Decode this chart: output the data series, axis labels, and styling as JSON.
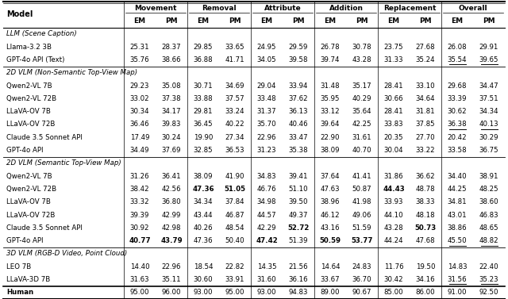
{
  "sections": [
    {
      "section_label": "LLM (Scene Caption)",
      "rows": [
        {
          "model": "Llama-3.2 3B",
          "values": [
            "25.31",
            "28.37",
            "29.85",
            "33.65",
            "24.95",
            "29.59",
            "26.78",
            "30.78",
            "23.75",
            "27.68",
            "26.08",
            "29.91"
          ],
          "bold": [
            false,
            false,
            false,
            false,
            false,
            false,
            false,
            false,
            false,
            false,
            false,
            false
          ],
          "underline": [
            false,
            false,
            false,
            false,
            false,
            false,
            false,
            false,
            false,
            false,
            false,
            false
          ]
        },
        {
          "model": "GPT-4o API (Text)",
          "values": [
            "35.76",
            "38.66",
            "36.88",
            "41.71",
            "34.05",
            "39.58",
            "39.74",
            "43.28",
            "31.33",
            "35.24",
            "35.54",
            "39.65"
          ],
          "bold": [
            false,
            false,
            false,
            false,
            false,
            false,
            false,
            false,
            false,
            false,
            false,
            false
          ],
          "underline": [
            false,
            false,
            false,
            false,
            false,
            false,
            false,
            false,
            false,
            false,
            true,
            true
          ]
        }
      ]
    },
    {
      "section_label": "2D VLM (Non-Semantic Top-View Map)",
      "rows": [
        {
          "model": "Qwen2-VL 7B",
          "values": [
            "29.23",
            "35.08",
            "30.71",
            "34.69",
            "29.04",
            "33.94",
            "31.48",
            "35.17",
            "28.41",
            "33.10",
            "29.68",
            "34.47"
          ],
          "bold": [
            false,
            false,
            false,
            false,
            false,
            false,
            false,
            false,
            false,
            false,
            false,
            false
          ],
          "underline": [
            false,
            false,
            false,
            false,
            false,
            false,
            false,
            false,
            false,
            false,
            false,
            false
          ]
        },
        {
          "model": "Qwen2-VL 72B",
          "values": [
            "33.02",
            "37.38",
            "33.88",
            "37.57",
            "33.48",
            "37.62",
            "35.95",
            "40.29",
            "30.66",
            "34.64",
            "33.39",
            "37.51"
          ],
          "bold": [
            false,
            false,
            false,
            false,
            false,
            false,
            false,
            false,
            false,
            false,
            false,
            false
          ],
          "underline": [
            false,
            false,
            false,
            false,
            false,
            false,
            false,
            false,
            false,
            false,
            false,
            false
          ]
        },
        {
          "model": "LLaVA-OV 7B",
          "values": [
            "30.34",
            "34.17",
            "29.81",
            "33.24",
            "31.37",
            "36.13",
            "33.12",
            "35.64",
            "28.41",
            "31.81",
            "30.62",
            "34.34"
          ],
          "bold": [
            false,
            false,
            false,
            false,
            false,
            false,
            false,
            false,
            false,
            false,
            false,
            false
          ],
          "underline": [
            false,
            false,
            false,
            false,
            false,
            false,
            false,
            false,
            false,
            false,
            false,
            false
          ]
        },
        {
          "model": "LLaVA-OV 72B",
          "values": [
            "36.46",
            "39.83",
            "36.45",
            "40.22",
            "35.70",
            "40.46",
            "39.64",
            "42.25",
            "33.83",
            "37.85",
            "36.38",
            "40.13"
          ],
          "bold": [
            false,
            false,
            false,
            false,
            false,
            false,
            false,
            false,
            false,
            false,
            false,
            false
          ],
          "underline": [
            false,
            false,
            false,
            false,
            false,
            false,
            false,
            false,
            false,
            false,
            true,
            true
          ]
        },
        {
          "model": "Claude 3.5 Sonnet API",
          "values": [
            "17.49",
            "30.24",
            "19.90",
            "27.34",
            "22.96",
            "33.47",
            "22.90",
            "31.61",
            "20.35",
            "27.70",
            "20.42",
            "30.29"
          ],
          "bold": [
            false,
            false,
            false,
            false,
            false,
            false,
            false,
            false,
            false,
            false,
            false,
            false
          ],
          "underline": [
            false,
            false,
            false,
            false,
            false,
            false,
            false,
            false,
            false,
            false,
            false,
            false
          ]
        },
        {
          "model": "GPT-4o API",
          "values": [
            "34.49",
            "37.69",
            "32.85",
            "36.53",
            "31.23",
            "35.38",
            "38.09",
            "40.70",
            "30.04",
            "33.22",
            "33.58",
            "36.75"
          ],
          "bold": [
            false,
            false,
            false,
            false,
            false,
            false,
            false,
            false,
            false,
            false,
            false,
            false
          ],
          "underline": [
            false,
            false,
            false,
            false,
            false,
            false,
            false,
            false,
            false,
            false,
            false,
            false
          ]
        }
      ]
    },
    {
      "section_label": "2D VLM (Semantic Top-View Map)",
      "rows": [
        {
          "model": "Qwen2-VL 7B",
          "values": [
            "31.26",
            "36.41",
            "38.09",
            "41.90",
            "34.83",
            "39.41",
            "37.64",
            "41.41",
            "31.86",
            "36.62",
            "34.40",
            "38.91"
          ],
          "bold": [
            false,
            false,
            false,
            false,
            false,
            false,
            false,
            false,
            false,
            false,
            false,
            false
          ],
          "underline": [
            false,
            false,
            false,
            false,
            false,
            false,
            false,
            false,
            false,
            false,
            false,
            false
          ]
        },
        {
          "model": "Qwen2-VL 72B",
          "values": [
            "38.42",
            "42.56",
            "47.36",
            "51.05",
            "46.76",
            "51.10",
            "47.63",
            "50.87",
            "44.43",
            "48.78",
            "44.25",
            "48.25"
          ],
          "bold": [
            false,
            false,
            true,
            true,
            false,
            false,
            false,
            false,
            true,
            false,
            false,
            false
          ],
          "underline": [
            false,
            false,
            false,
            false,
            false,
            false,
            false,
            false,
            false,
            false,
            false,
            false
          ]
        },
        {
          "model": "LLaVA-OV 7B",
          "values": [
            "33.32",
            "36.80",
            "34.34",
            "37.84",
            "34.98",
            "39.50",
            "38.96",
            "41.98",
            "33.93",
            "38.33",
            "34.81",
            "38.60"
          ],
          "bold": [
            false,
            false,
            false,
            false,
            false,
            false,
            false,
            false,
            false,
            false,
            false,
            false
          ],
          "underline": [
            false,
            false,
            false,
            false,
            false,
            false,
            false,
            false,
            false,
            false,
            false,
            false
          ]
        },
        {
          "model": "LLaVA-OV 72B",
          "values": [
            "39.39",
            "42.99",
            "43.44",
            "46.87",
            "44.57",
            "49.37",
            "46.12",
            "49.06",
            "44.10",
            "48.18",
            "43.01",
            "46.83"
          ],
          "bold": [
            false,
            false,
            false,
            false,
            false,
            false,
            false,
            false,
            false,
            false,
            false,
            false
          ],
          "underline": [
            false,
            false,
            false,
            false,
            false,
            false,
            false,
            false,
            false,
            false,
            false,
            false
          ]
        },
        {
          "model": "Claude 3.5 Sonnet API",
          "values": [
            "30.92",
            "42.98",
            "40.26",
            "48.54",
            "42.29",
            "52.72",
            "43.16",
            "51.59",
            "43.28",
            "50.73",
            "38.86",
            "48.65"
          ],
          "bold": [
            false,
            false,
            false,
            false,
            false,
            true,
            false,
            false,
            false,
            true,
            false,
            false
          ],
          "underline": [
            false,
            false,
            false,
            false,
            false,
            false,
            false,
            false,
            false,
            false,
            false,
            false
          ]
        },
        {
          "model": "GPT-4o API",
          "values": [
            "40.77",
            "43.79",
            "47.36",
            "50.40",
            "47.42",
            "51.39",
            "50.59",
            "53.77",
            "44.24",
            "47.68",
            "45.50",
            "48.82"
          ],
          "bold": [
            true,
            true,
            false,
            false,
            true,
            false,
            true,
            true,
            false,
            false,
            false,
            false
          ],
          "underline": [
            false,
            false,
            false,
            false,
            false,
            false,
            false,
            false,
            false,
            false,
            true,
            true
          ]
        }
      ]
    },
    {
      "section_label": "3D VLM (RGB-D Video, Point Cloud)",
      "rows": [
        {
          "model": "LEO 7B",
          "values": [
            "14.40",
            "22.96",
            "18.54",
            "22.82",
            "14.35",
            "21.56",
            "14.64",
            "24.83",
            "11.76",
            "19.50",
            "14.83",
            "22.40"
          ],
          "bold": [
            false,
            false,
            false,
            false,
            false,
            false,
            false,
            false,
            false,
            false,
            false,
            false
          ],
          "underline": [
            false,
            false,
            false,
            false,
            false,
            false,
            false,
            false,
            false,
            false,
            false,
            false
          ]
        },
        {
          "model": "LLaVA-3D 7B",
          "values": [
            "31.63",
            "35.11",
            "30.60",
            "33.91",
            "31.60",
            "36.16",
            "33.67",
            "36.70",
            "30.42",
            "34.16",
            "31.56",
            "35.23"
          ],
          "bold": [
            false,
            false,
            false,
            false,
            false,
            false,
            false,
            false,
            false,
            false,
            false,
            false
          ],
          "underline": [
            false,
            false,
            false,
            false,
            false,
            false,
            false,
            false,
            false,
            false,
            true,
            true
          ]
        }
      ]
    },
    {
      "section_label": "Human",
      "rows": [
        {
          "model": "Human",
          "values": [
            "95.00",
            "96.00",
            "93.00",
            "95.00",
            "93.00",
            "94.83",
            "89.00",
            "90.67",
            "85.00",
            "86.00",
            "91.00",
            "92.50"
          ],
          "bold": [
            false,
            false,
            false,
            false,
            false,
            false,
            false,
            false,
            false,
            false,
            false,
            false
          ],
          "underline": [
            false,
            false,
            false,
            false,
            false,
            false,
            false,
            false,
            false,
            false,
            false,
            false
          ]
        }
      ]
    }
  ],
  "groups": [
    {
      "label": "Movement",
      "start": 0,
      "end": 1
    },
    {
      "label": "Removal",
      "start": 2,
      "end": 3
    },
    {
      "label": "Attribute",
      "start": 4,
      "end": 5
    },
    {
      "label": "Addition",
      "start": 6,
      "end": 7
    },
    {
      "label": "Replacement",
      "start": 8,
      "end": 9
    },
    {
      "label": "Overall",
      "start": 10,
      "end": 11
    }
  ]
}
